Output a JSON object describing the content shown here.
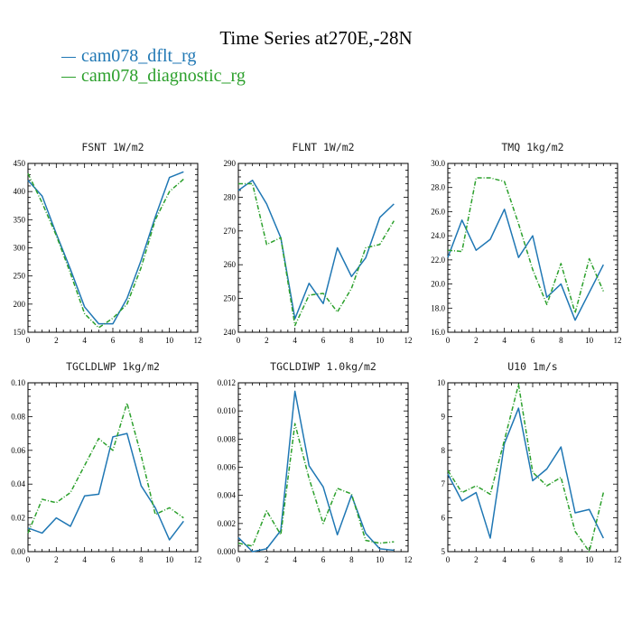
{
  "title": "Time Series at270E,-28N",
  "legend": [
    {
      "label": "cam078_dflt_rg",
      "color": "#1f77b4"
    },
    {
      "label": "cam078_diagnostic_rg",
      "color": "#2ca02c"
    }
  ],
  "chart_data": [
    {
      "type": "line",
      "title": "FSNT  1W/m2",
      "xlim": [
        0,
        12
      ],
      "xticks": [
        0,
        2,
        4,
        6,
        8,
        10,
        12
      ],
      "ylim": [
        150,
        450
      ],
      "yticks": [
        150,
        200,
        250,
        300,
        350,
        400,
        450
      ],
      "series": [
        {
          "name": "cam078_dflt_rg",
          "x": [
            0,
            1,
            2,
            3,
            4,
            5,
            6,
            7,
            8,
            9,
            10,
            11
          ],
          "values": [
            420,
            392,
            325,
            262,
            195,
            165,
            165,
            210,
            278,
            355,
            425,
            435
          ]
        },
        {
          "name": "cam078_diagnostic_rg",
          "x": [
            0,
            1,
            2,
            3,
            4,
            5,
            6,
            7,
            8,
            9,
            10,
            11
          ],
          "values": [
            432,
            380,
            322,
            255,
            183,
            158,
            175,
            200,
            265,
            350,
            400,
            422
          ]
        }
      ]
    },
    {
      "type": "line",
      "title": "FLNT  1W/m2",
      "xlim": [
        0,
        12
      ],
      "xticks": [
        0,
        2,
        4,
        6,
        8,
        10,
        12
      ],
      "ylim": [
        240,
        290
      ],
      "yticks": [
        240,
        250,
        260,
        270,
        280,
        290
      ],
      "series": [
        {
          "name": "cam078_dflt_rg",
          "x": [
            0,
            1,
            2,
            3,
            4,
            5,
            6,
            7,
            8,
            9,
            10,
            11
          ],
          "values": [
            282,
            285,
            278,
            268,
            244,
            254.5,
            248.5,
            265,
            256.5,
            262,
            274,
            278
          ]
        },
        {
          "name": "cam078_diagnostic_rg",
          "x": [
            0,
            1,
            2,
            3,
            4,
            5,
            6,
            7,
            8,
            9,
            10,
            11
          ],
          "values": [
            284,
            284,
            266,
            268,
            242,
            251,
            251.5,
            246,
            253,
            265,
            266,
            273
          ]
        }
      ]
    },
    {
      "type": "line",
      "title": "TMQ  1kg/m2",
      "xlim": [
        0,
        12
      ],
      "xticks": [
        0,
        2,
        4,
        6,
        8,
        10,
        12
      ],
      "ylim": [
        16.0,
        30.0
      ],
      "yticks": [
        16,
        18,
        20,
        22,
        24,
        26,
        28,
        30
      ],
      "ydecimals": 1,
      "series": [
        {
          "name": "cam078_dflt_rg",
          "x": [
            0,
            1,
            2,
            3,
            4,
            5,
            6,
            7,
            8,
            9,
            10,
            11
          ],
          "values": [
            22.2,
            25.3,
            22.8,
            23.7,
            26.2,
            22.2,
            24.0,
            18.9,
            20.0,
            17.0,
            19.3,
            21.6
          ]
        },
        {
          "name": "cam078_diagnostic_rg",
          "x": [
            0,
            1,
            2,
            3,
            4,
            5,
            6,
            7,
            8,
            9,
            10,
            11
          ],
          "values": [
            22.8,
            22.7,
            28.8,
            28.8,
            28.5,
            25.0,
            21.2,
            18.3,
            21.7,
            17.6,
            22.1,
            19.4
          ]
        }
      ]
    },
    {
      "type": "line",
      "title": "TGCLDLWP  1kg/m2",
      "xlim": [
        0,
        12
      ],
      "xticks": [
        0,
        2,
        4,
        6,
        8,
        10,
        12
      ],
      "ylim": [
        0.0,
        0.1
      ],
      "yticks": [
        0,
        0.02,
        0.04,
        0.06,
        0.08,
        0.1
      ],
      "ydecimals": 2,
      "series": [
        {
          "name": "cam078_dflt_rg",
          "x": [
            0,
            1,
            2,
            3,
            4,
            5,
            6,
            7,
            8,
            9,
            10,
            11
          ],
          "values": [
            0.014,
            0.011,
            0.02,
            0.015,
            0.033,
            0.034,
            0.068,
            0.07,
            0.039,
            0.026,
            0.007,
            0.018
          ]
        },
        {
          "name": "cam078_diagnostic_rg",
          "x": [
            0,
            1,
            2,
            3,
            4,
            5,
            6,
            7,
            8,
            9,
            10,
            11
          ],
          "values": [
            0.011,
            0.031,
            0.029,
            0.035,
            0.051,
            0.067,
            0.06,
            0.088,
            0.057,
            0.022,
            0.026,
            0.02
          ]
        }
      ]
    },
    {
      "type": "line",
      "title": "TGCLDIWP  1.0kg/m2",
      "xlim": [
        0,
        12
      ],
      "xticks": [
        0,
        2,
        4,
        6,
        8,
        10,
        12
      ],
      "ylim": [
        0.0,
        0.012
      ],
      "yticks": [
        0,
        0.002,
        0.004,
        0.006,
        0.008,
        0.01,
        0.012
      ],
      "ydecimals": 3,
      "series": [
        {
          "name": "cam078_dflt_rg",
          "x": [
            0,
            1,
            2,
            3,
            4,
            5,
            6,
            7,
            8,
            9,
            10,
            11
          ],
          "values": [
            0.001,
            0.0,
            0.0002,
            0.0015,
            0.0114,
            0.0061,
            0.0046,
            0.0012,
            0.004,
            0.0013,
            0.0002,
            0.0001
          ]
        },
        {
          "name": "cam078_diagnostic_rg",
          "x": [
            0,
            1,
            2,
            3,
            4,
            5,
            6,
            7,
            8,
            9,
            10,
            11
          ],
          "values": [
            0.0006,
            0.0004,
            0.0029,
            0.0012,
            0.0091,
            0.0052,
            0.002,
            0.0045,
            0.0041,
            0.0008,
            0.0006,
            0.0007
          ]
        }
      ]
    },
    {
      "type": "line",
      "title": "U10  1m/s",
      "xlim": [
        0,
        12
      ],
      "xticks": [
        0,
        2,
        4,
        6,
        8,
        10,
        12
      ],
      "ylim": [
        5,
        10
      ],
      "yticks": [
        5,
        6,
        7,
        8,
        9,
        10
      ],
      "series": [
        {
          "name": "cam078_dflt_rg",
          "x": [
            0,
            1,
            2,
            3,
            4,
            5,
            6,
            7,
            8,
            9,
            10,
            11
          ],
          "values": [
            7.3,
            6.5,
            6.75,
            5.4,
            8.2,
            9.25,
            7.1,
            7.45,
            8.1,
            6.15,
            6.25,
            5.4
          ]
        },
        {
          "name": "cam078_diagnostic_rg",
          "x": [
            0,
            1,
            2,
            3,
            4,
            5,
            6,
            7,
            8,
            9,
            10,
            11
          ],
          "values": [
            7.4,
            6.75,
            6.95,
            6.7,
            8.3,
            9.95,
            7.35,
            6.95,
            7.2,
            5.6,
            5.0,
            6.75
          ]
        }
      ]
    }
  ]
}
